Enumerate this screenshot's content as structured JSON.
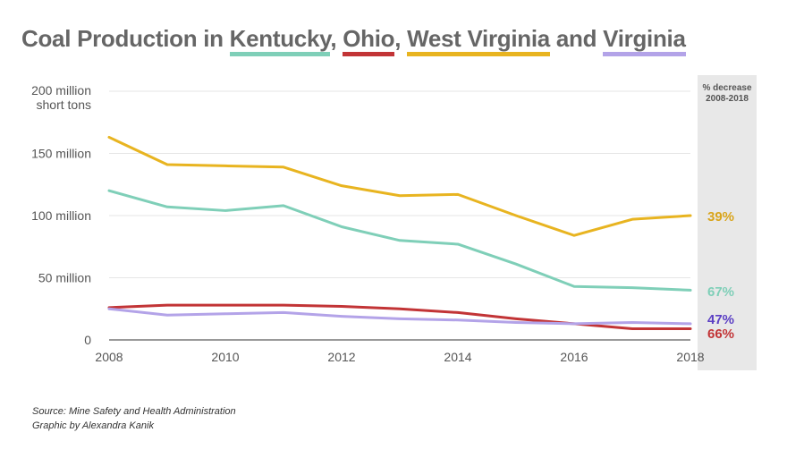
{
  "title": {
    "prefix": "Coal Production in ",
    "kentucky": "Kentucky",
    "sep1": ", ",
    "ohio": "Ohio",
    "sep2": ", ",
    "west_virginia": "West Virginia",
    "and": " and ",
    "virginia": "Virginia"
  },
  "colors": {
    "kentucky": "#7fcfb8",
    "ohio": "#c23436",
    "west_virginia": "#e8b420",
    "virginia": "#b3a3e8",
    "grid": "#e6e6e6",
    "decrease_panel": "#e8e8e8"
  },
  "chart_data": {
    "type": "line",
    "title": "Coal Production in Kentucky, Ohio, West Virginia and Virginia",
    "ylabel": "",
    "y_top_label_line1": "200 million",
    "y_top_label_line2": "short tons",
    "ylim": [
      0,
      200
    ],
    "xlim": [
      2008,
      2018
    ],
    "y_ticks": [
      {
        "value": 150,
        "label": "150 million"
      },
      {
        "value": 100,
        "label": "100 million"
      },
      {
        "value": 50,
        "label": "50 million"
      },
      {
        "value": 0,
        "label": "0"
      }
    ],
    "x_ticks": [
      2008,
      2010,
      2012,
      2014,
      2016,
      2018
    ],
    "x": [
      2008,
      2009,
      2010,
      2011,
      2012,
      2013,
      2014,
      2015,
      2016,
      2017,
      2018
    ],
    "series": [
      {
        "name": "West Virginia",
        "key": "west_virginia",
        "values": [
          163,
          141,
          140,
          139,
          124,
          116,
          117,
          100,
          84,
          97,
          100
        ],
        "decrease": "39%"
      },
      {
        "name": "Kentucky",
        "key": "kentucky",
        "values": [
          120,
          107,
          104,
          108,
          91,
          80,
          77,
          61,
          43,
          42,
          40
        ],
        "decrease": "67%"
      },
      {
        "name": "Ohio",
        "key": "ohio",
        "values": [
          26,
          28,
          28,
          28,
          27,
          25,
          22,
          17,
          13,
          9,
          9
        ],
        "decrease": "66%"
      },
      {
        "name": "Virginia",
        "key": "virginia",
        "values": [
          25,
          20,
          21,
          22,
          19,
          17,
          16,
          14,
          13,
          14,
          13
        ],
        "decrease": "47%"
      }
    ],
    "decrease_header_line1": "% decrease",
    "decrease_header_line2": "2008-2018",
    "decrease_label_colors": {
      "west_virginia": "#d9a41a",
      "kentucky": "#7fcfb8",
      "virginia": "#5b3fc4",
      "ohio": "#c23436"
    }
  },
  "source": {
    "line1": "Source: Mine Safety and Health Administration",
    "line2": "Graphic by Alexandra Kanik"
  }
}
